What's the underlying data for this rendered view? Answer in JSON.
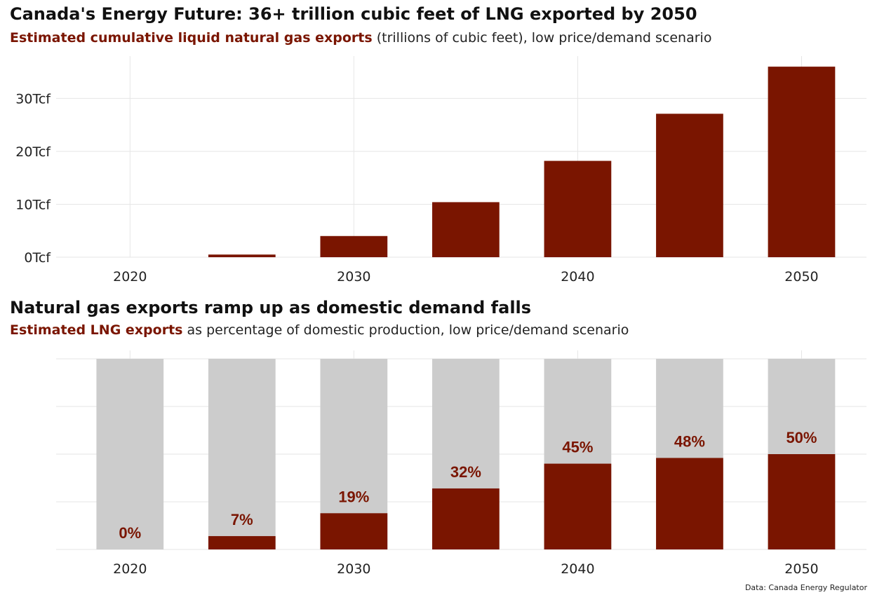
{
  "charts": [
    {
      "title": "Canada's Energy Future: 36+ trillion cubic feet of LNG exported by 2050",
      "subtitle_highlight": "Estimated cumulative liquid natural gas exports",
      "subtitle_rest": " (trillions of cubic feet), low price/demand scenario"
    },
    {
      "title": "Natural gas exports ramp up as domestic demand falls",
      "subtitle_highlight": "Estimated LNG exports",
      "subtitle_rest": " as percentage of domestic production, low price/demand scenario"
    }
  ],
  "source": "Data: Canada Energy Regulator",
  "colors": {
    "bar": "#7a1500",
    "background_bar": "#cccccc",
    "grid": "#e6e6e6",
    "text": "#222222"
  },
  "chart_data": [
    {
      "type": "bar",
      "title": "Canada's Energy Future: 36+ trillion cubic feet of LNG exported by 2050",
      "subtitle": "Estimated cumulative liquid natural gas exports (trillions of cubic feet), low price/demand scenario",
      "x": [
        2020,
        2025,
        2030,
        2035,
        2040,
        2045,
        2050
      ],
      "values": [
        0,
        0.5,
        4,
        10.4,
        18.2,
        27.1,
        36
      ],
      "xticks": [
        2020,
        2030,
        2040,
        2050
      ],
      "xtick_labels": [
        "2020",
        "2030",
        "2040",
        "2050"
      ],
      "yticks": [
        0,
        10,
        20,
        30
      ],
      "ytick_labels": [
        "0Tcf",
        "10Tcf",
        "20Tcf",
        "30Tcf"
      ],
      "xlim": [
        2016.7,
        2052.9
      ],
      "ylim": [
        0,
        38
      ],
      "grid": true
    },
    {
      "type": "bar",
      "title": "Natural gas exports ramp up as domestic demand falls",
      "subtitle": "Estimated LNG exports as percentage of domestic production, low price/demand scenario",
      "x": [
        2020,
        2025,
        2030,
        2035,
        2040,
        2045,
        2050
      ],
      "values": [
        0,
        7,
        19,
        32,
        45,
        48,
        50
      ],
      "data_labels": [
        "0%",
        "7%",
        "19%",
        "32%",
        "45%",
        "48%",
        "50%"
      ],
      "background_value": 100,
      "xticks": [
        2020,
        2030,
        2040,
        2050
      ],
      "xtick_labels": [
        "2020",
        "2030",
        "2040",
        "2050"
      ],
      "xlim": [
        2016.7,
        2052.9
      ],
      "ylim": [
        0,
        100
      ],
      "grid": true
    }
  ]
}
